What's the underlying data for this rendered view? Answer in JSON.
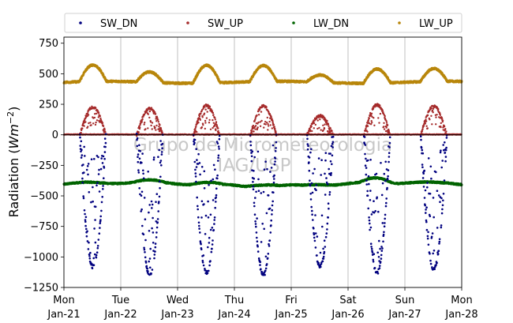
{
  "chart_data": {
    "type": "scatter",
    "ylabel_prefix": "Radiation (",
    "ylabel_unit": "Wm",
    "ylabel_exp": "−2",
    "ylabel_suffix": ")",
    "ylim": [
      -1250,
      800
    ],
    "yticks": [
      -1250,
      -1000,
      -750,
      -500,
      -250,
      0,
      250,
      500,
      750
    ],
    "ytick_labels": [
      "−1250",
      "−1000",
      "−750",
      "−500",
      "−250",
      "0",
      "250",
      "500",
      "750"
    ],
    "xlim_days": [
      0,
      7
    ],
    "x_ticks": [
      {
        "day": "Mon",
        "date": "Jan-21"
      },
      {
        "day": "Tue",
        "date": "Jan-22"
      },
      {
        "day": "Wed",
        "date": "Jan-23"
      },
      {
        "day": "Thu",
        "date": "Jan-24"
      },
      {
        "day": "Fri",
        "date": "Jan-25"
      },
      {
        "day": "Sat",
        "date": "Jan-26"
      },
      {
        "day": "Sun",
        "date": "Jan-27"
      },
      {
        "day": "Mon",
        "date": "Jan-28"
      }
    ],
    "grid": "vertical",
    "legend_position": "top",
    "watermark": [
      "Grupo de Micrometeorologia",
      "IAG/USP"
    ],
    "daily_peaks": {
      "SW_DN": [
        -1080,
        -1150,
        -1130,
        -1150,
        -1080,
        -1130,
        -1100
      ],
      "SW_UP": [
        225,
        215,
        240,
        235,
        155,
        245,
        235
      ],
      "LW_DN": [
        -400,
        -380,
        -380,
        -380,
        -390,
        -340,
        -410
      ],
      "LW_UP": [
        565,
        515,
        575,
        560,
        490,
        545,
        535
      ]
    },
    "series": [
      {
        "name": "SW_DN",
        "color": "#00007f"
      },
      {
        "name": "SW_UP",
        "color": "#a52a2a"
      },
      {
        "name": "LW_DN",
        "color": "#006400"
      },
      {
        "name": "LW_UP",
        "color": "#b8860b"
      }
    ]
  }
}
